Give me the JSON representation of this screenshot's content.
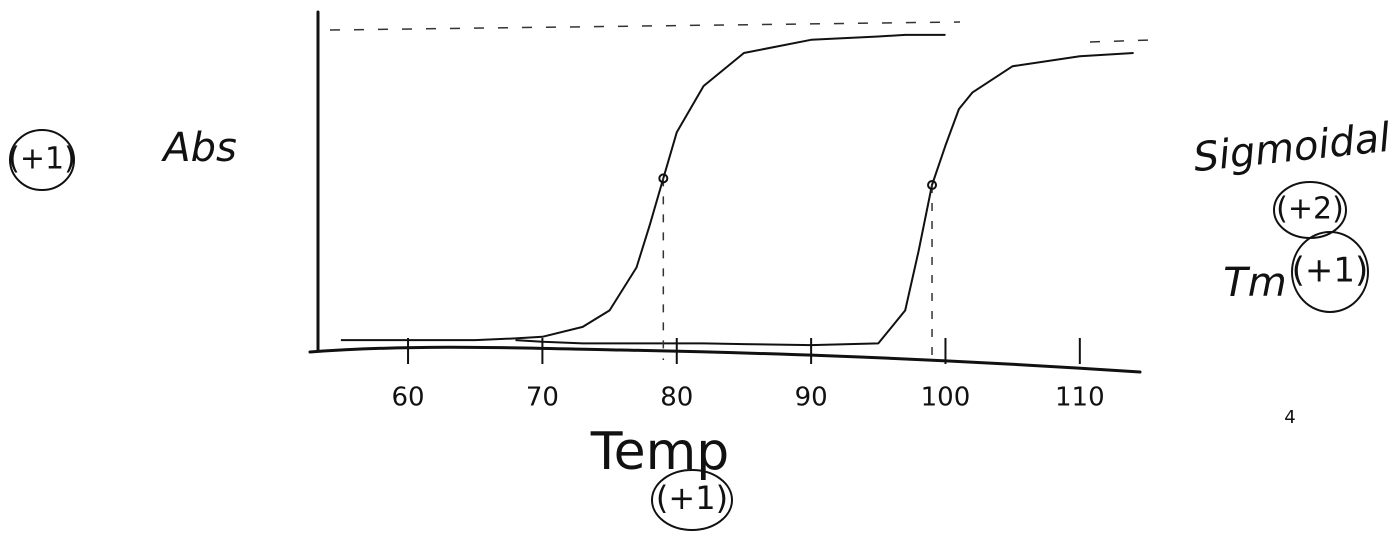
{
  "chart_data": {
    "type": "line",
    "x_label": "Temp",
    "y_label": "Abs",
    "x": [
      55,
      60,
      65,
      68,
      70,
      73,
      75,
      77,
      78,
      79,
      80,
      82,
      85,
      90,
      95,
      97,
      98,
      99,
      100,
      101,
      102,
      105,
      110,
      114
    ],
    "series": [
      {
        "color": "#111111",
        "values": [
          0.03,
          0.03,
          0.03,
          0.035,
          0.04,
          0.07,
          0.12,
          0.25,
          0.38,
          0.52,
          0.66,
          0.8,
          0.9,
          0.94,
          0.95,
          0.955,
          0.955,
          0.955,
          0.955,
          null,
          null,
          null,
          null,
          null
        ]
      },
      {
        "color": "#111111",
        "values": [
          null,
          null,
          null,
          0.03,
          0.025,
          0.02,
          0.02,
          0.02,
          0.02,
          0.02,
          0.02,
          0.02,
          0.018,
          0.015,
          0.02,
          0.12,
          0.3,
          0.5,
          0.62,
          0.73,
          0.78,
          0.86,
          0.89,
          0.9
        ]
      }
    ],
    "tm": [
      79,
      99
    ],
    "xlim": [
      53,
      115
    ],
    "xticks": [
      60,
      70,
      80,
      90,
      100,
      110
    ],
    "ylim": [
      0,
      1
    ],
    "annotations": [
      "(+1)",
      "Sigmoidal",
      "(+2)",
      "Tm",
      "(+1)",
      "(+1)",
      "4"
    ]
  }
}
